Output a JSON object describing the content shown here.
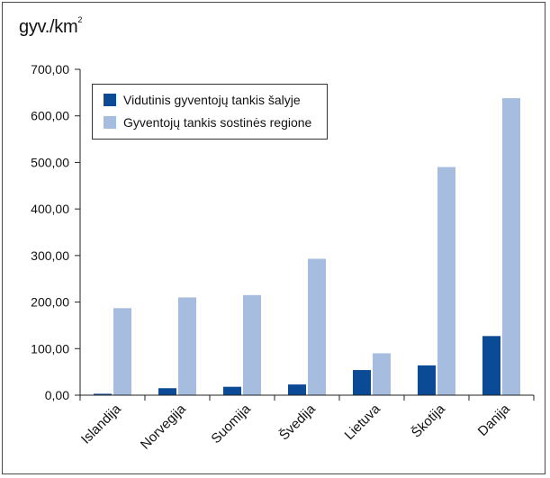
{
  "chart_data": {
    "type": "bar",
    "ylabel": "gyv./km",
    "ylabel_sup": "2",
    "ylim": [
      0,
      700
    ],
    "yticks": [
      "0,00",
      "100,00",
      "200,00",
      "300,00",
      "400,00",
      "500,00",
      "600,00",
      "700,00"
    ],
    "categories": [
      "Islandija",
      "Norvegija",
      "Suomija",
      "Švedija",
      "Lietuva",
      "Škotija",
      "Danija"
    ],
    "series": [
      {
        "name": "Vidutinis gyventojų tankis šalyje",
        "color": "#0b4a94",
        "values": [
          3,
          15,
          18,
          23,
          54,
          64,
          127
        ]
      },
      {
        "name": "Gyventojų tankis sostinės regione",
        "color": "#a6bde0",
        "values": [
          187,
          210,
          215,
          293,
          90,
          490,
          638
        ]
      }
    ],
    "legend_position": "top-left",
    "grid": false
  }
}
